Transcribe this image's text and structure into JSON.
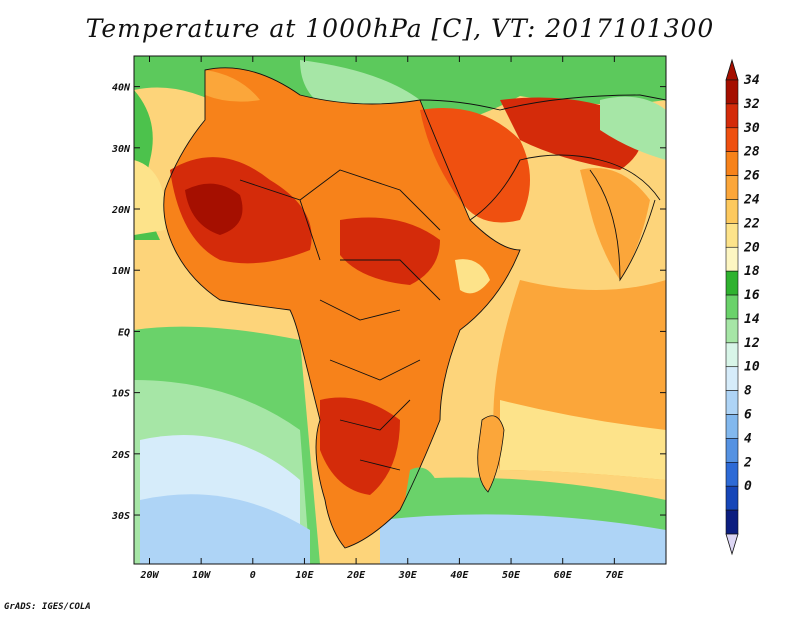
{
  "title": "Temperature at 1000hPa [C], VT: 2017101300",
  "credit": "GrADS: IGES/COLA",
  "map": {
    "lon_range": [
      -23,
      80
    ],
    "lat_range": [
      -38,
      45
    ],
    "lon_ticks": [
      {
        "value": -20,
        "label": "20W"
      },
      {
        "value": -10,
        "label": "10W"
      },
      {
        "value": 0,
        "label": "0"
      },
      {
        "value": 10,
        "label": "10E"
      },
      {
        "value": 20,
        "label": "20E"
      },
      {
        "value": 30,
        "label": "30E"
      },
      {
        "value": 40,
        "label": "40E"
      },
      {
        "value": 50,
        "label": "50E"
      },
      {
        "value": 60,
        "label": "60E"
      },
      {
        "value": 70,
        "label": "70E"
      }
    ],
    "lat_ticks": [
      {
        "value": 40,
        "label": "40N"
      },
      {
        "value": 30,
        "label": "30N"
      },
      {
        "value": 20,
        "label": "20N"
      },
      {
        "value": 10,
        "label": "10N"
      },
      {
        "value": 0,
        "label": "EQ"
      },
      {
        "value": -10,
        "label": "10S"
      },
      {
        "value": -20,
        "label": "20S"
      },
      {
        "value": -30,
        "label": "30S"
      }
    ]
  },
  "colorbar": {
    "labels": [
      "34",
      "32",
      "30",
      "28",
      "26",
      "24",
      "22",
      "20",
      "18",
      "16",
      "14",
      "12",
      "10",
      "8",
      "6",
      "4",
      "2",
      "0"
    ],
    "colors": [
      "#a50f00",
      "#d42b0a",
      "#ef5010",
      "#f7821a",
      "#fba63a",
      "#fdc95e",
      "#fde38a",
      "#fdf6c2",
      "#2fb22f",
      "#6ad26a",
      "#a6e6a6",
      "#d8f5e8",
      "#d6ecfa",
      "#aed4f6",
      "#82b8ee",
      "#5592e2",
      "#2d6ad6",
      "#1646b8",
      "#0c1e80"
    ],
    "max_arrow_color": "#a50f00",
    "min_arrow_color": "#dcd6f4"
  }
}
